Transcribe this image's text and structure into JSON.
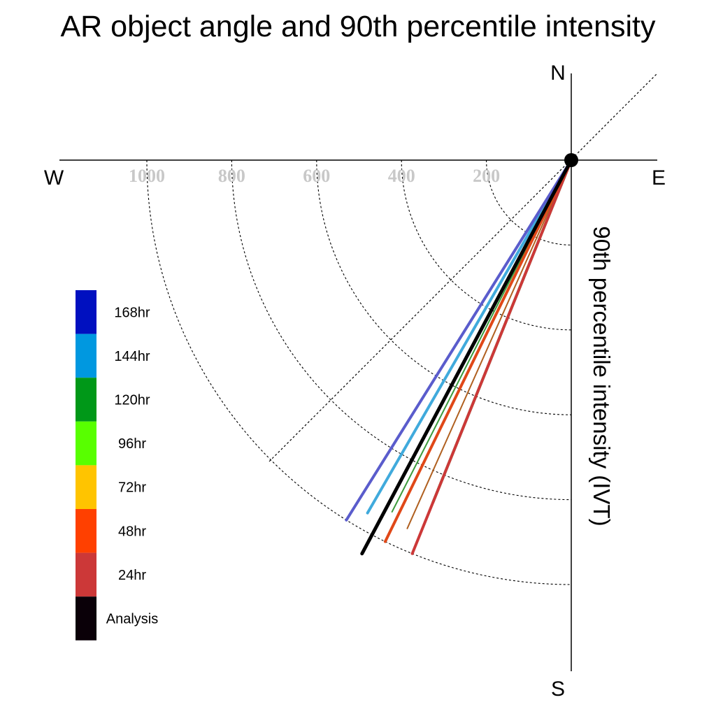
{
  "title": "AR object angle and 90th percentile intensity",
  "chart_data": {
    "type": "polar-line",
    "title": "AR object angle and 90th percentile intensity",
    "ylabel": "90th percentile intensity (IVT)",
    "compass": {
      "n": "N",
      "s": "S",
      "e": "E",
      "w": "W"
    },
    "radial_ticks": [
      {
        "value": 200,
        "label": "200"
      },
      {
        "value": 400,
        "label": "400"
      },
      {
        "value": 600,
        "label": "600"
      },
      {
        "value": 800,
        "label": "800"
      },
      {
        "value": 1000,
        "label": "1000"
      }
    ],
    "radial_max": 1200,
    "grid": true,
    "legend_position": "left",
    "series": [
      {
        "name": "168hr",
        "color": "#0010c0",
        "angle_deg": 212,
        "intensity": 1000,
        "line_color": "#5a5ccc",
        "width": 4
      },
      {
        "name": "144hr",
        "color": "#0098e0",
        "angle_deg": 210,
        "intensity": 960,
        "line_color": "#40aadc",
        "width": 4
      },
      {
        "name": "120hr",
        "color": "#009818",
        "angle_deg": 202,
        "intensity": 870,
        "line_color": "#3aaa48",
        "width": 4
      },
      {
        "name": "96hr",
        "color": "#58ff00",
        "angle_deg": 207,
        "intensity": 930,
        "line_color": "#3a9a3a",
        "width": 2
      },
      {
        "name": "72hr",
        "color": "#ffc400",
        "angle_deg": 204,
        "intensity": 950,
        "line_color": "#b06020",
        "width": 2
      },
      {
        "name": "48hr",
        "color": "#ff4000",
        "angle_deg": 206,
        "intensity": 1000,
        "line_color": "#e04818",
        "width": 4
      },
      {
        "name": "24hr",
        "color": "#cc3838",
        "angle_deg": 202,
        "intensity": 1000,
        "line_color": "#cc3838",
        "width": 4
      },
      {
        "name": "Analysis",
        "color": "#0a0008",
        "angle_deg": 208,
        "intensity": 1050,
        "line_color": "#000000",
        "width": 5
      }
    ]
  }
}
